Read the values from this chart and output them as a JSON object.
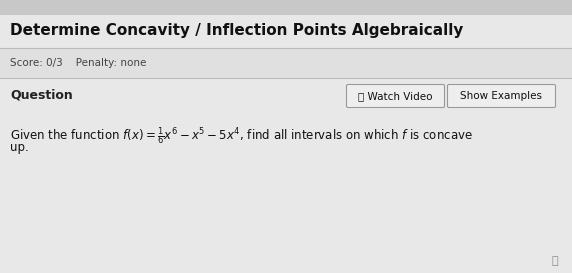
{
  "title": "Determine Concavity / Inflection Points Algebraically",
  "score_text": "Score: 0/3    Penalty: none",
  "question_label": "Question",
  "btn1_text": "ⓘ Watch Video",
  "btn2_text": "Show Examples",
  "body_line1": "Given the function $f(x) = \\frac{1}{6}x^6 - x^5 - 5x^4$, find all intervals on which $f$ is concave",
  "body_line2": "up.",
  "bg_top_color": "#c8c8c8",
  "card_color": "#e4e4e4",
  "title_bg": "#e8e8e8",
  "title_color": "#111111",
  "score_color": "#444444",
  "question_color": "#222222",
  "body_color": "#111111",
  "btn_bg": "#eeeeee",
  "btn_border": "#999999",
  "title_fontsize": 11,
  "score_fontsize": 7.5,
  "question_fontsize": 9,
  "body_fontsize": 8.5,
  "btn_fontsize": 7.5,
  "divider_color": "#bbbbbb",
  "top_bar_color": "#d6d6d6"
}
